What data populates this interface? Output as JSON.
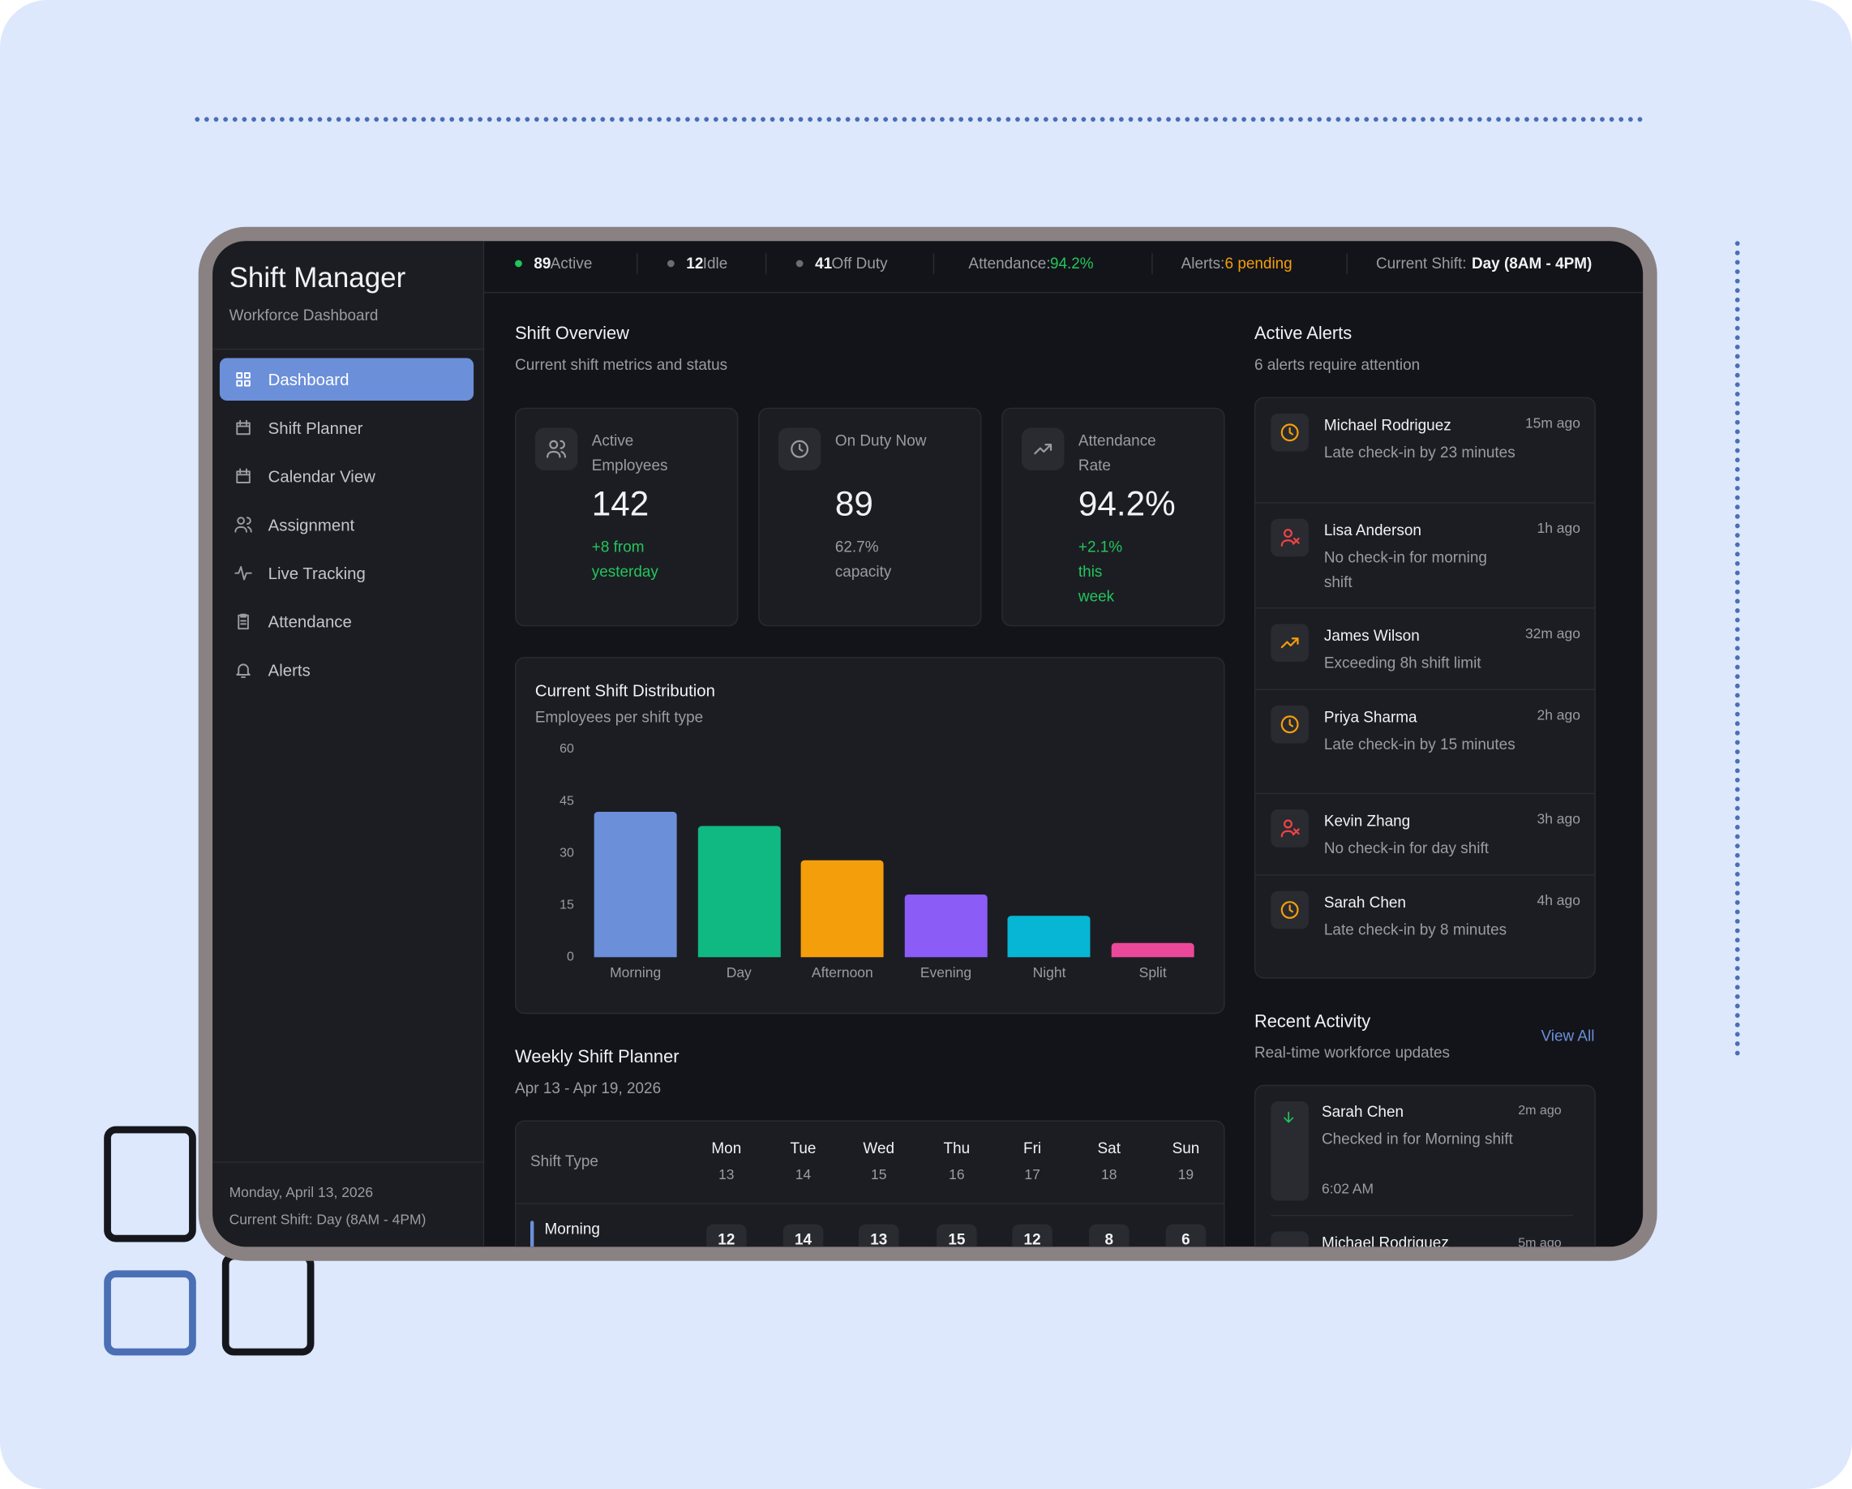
{
  "sidebar": {
    "title": "Shift Manager",
    "subtitle": "Workforce Dashboard",
    "nav": [
      "Dashboard",
      "Shift Planner",
      "Calendar View",
      "Assignment",
      "Live Tracking",
      "Attendance",
      "Alerts"
    ],
    "footer": [
      "Monday, April 13, 2026",
      "Current Shift: Day (8AM - 4PM)"
    ]
  },
  "status_bar": {
    "counts": [
      {
        "value": "89",
        "label": "Active"
      },
      {
        "value": "12",
        "label": "Idle"
      },
      {
        "value": "41",
        "label": "Off Duty"
      }
    ],
    "attendance": {
      "label": "Attendance:",
      "value": "94.2%"
    },
    "alerts": {
      "label": "Alerts:",
      "value": "6 pending"
    },
    "shift": {
      "label": "Current Shift:",
      "value": "Day (8AM - 4PM)"
    }
  },
  "overview": {
    "title": "Shift Overview",
    "subtitle": "Current shift metrics and status",
    "cards": [
      {
        "label": "Active Employees",
        "value": "142",
        "note": "+8 from yesterday"
      },
      {
        "label": "On Duty Now",
        "value": "89",
        "note": "62.7% capacity"
      },
      {
        "label": "Attendance Rate",
        "value": "94.2%",
        "note": "+2.1% this week"
      }
    ]
  },
  "chart_data": {
    "type": "bar",
    "title": "Current Shift Distribution",
    "subtitle": "Employees per shift type",
    "categories": [
      "Morning",
      "Day",
      "Afternoon",
      "Evening",
      "Night",
      "Split"
    ],
    "values": [
      42,
      38,
      28,
      18,
      12,
      4
    ],
    "colors": [
      "#6b8fd9",
      "#10b981",
      "#f59e0b",
      "#8b5cf6",
      "#06b6d4",
      "#ec4899"
    ],
    "ylim": [
      0,
      60
    ],
    "yticks": [
      0,
      15,
      30,
      45,
      60
    ]
  },
  "planner": {
    "title": "Weekly Shift Planner",
    "range": "Apr 13 - Apr 19, 2026",
    "header": "Shift Type",
    "days": [
      {
        "day": "Mon",
        "date": "13"
      },
      {
        "day": "Tue",
        "date": "14"
      },
      {
        "day": "Wed",
        "date": "15"
      },
      {
        "day": "Thu",
        "date": "16"
      },
      {
        "day": "Fri",
        "date": "17"
      },
      {
        "day": "Sat",
        "date": "18"
      },
      {
        "day": "Sun",
        "date": "19"
      }
    ],
    "rows": [
      {
        "name": "Morning",
        "counts": [
          "12",
          "14",
          "13",
          "15",
          "12",
          "8",
          "6"
        ]
      }
    ]
  },
  "alerts": {
    "title": "Active Alerts",
    "subtitle": "6 alerts require attention",
    "items": [
      {
        "name": "Michael Rodriguez",
        "message": "Late check-in by 23 minutes",
        "time": "15m ago"
      },
      {
        "name": "Lisa Anderson",
        "message": "No check-in for morning shift",
        "time": "1h ago"
      },
      {
        "name": "James Wilson",
        "message": "Exceeding 8h shift limit",
        "time": "32m ago"
      },
      {
        "name": "Priya Sharma",
        "message": "Late check-in by 15 minutes",
        "time": "2h ago"
      },
      {
        "name": "Kevin Zhang",
        "message": "No check-in for day shift",
        "time": "3h ago"
      },
      {
        "name": "Sarah Chen",
        "message": "Late check-in by 8 minutes",
        "time": "4h ago"
      }
    ]
  },
  "activity": {
    "title": "Recent Activity",
    "subtitle": "Real-time workforce updates",
    "link": "View All",
    "items": [
      {
        "name": "Sarah Chen",
        "message": "Checked in for Morning shift",
        "clock": "6:02 AM",
        "time": "2m ago"
      },
      {
        "name": "Michael Rodriguez",
        "time": "5m ago"
      }
    ]
  }
}
